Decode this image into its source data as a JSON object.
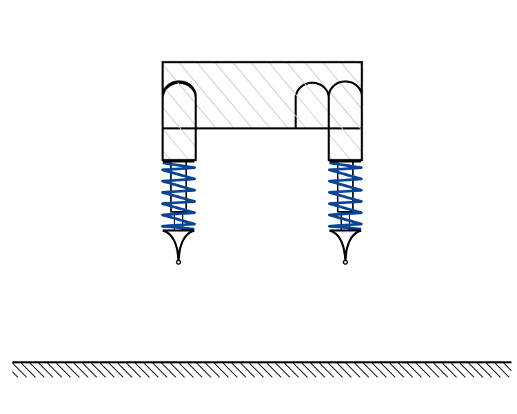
{
  "diagram": {
    "subject": "rigid-body-on-two-spring-legs-above-ground",
    "colors": {
      "outline": "#000000",
      "hatch": "#d0d0d0",
      "spring": "#0b4596",
      "background": "#ffffff"
    },
    "legs": [
      {
        "id": "left"
      },
      {
        "id": "right"
      }
    ],
    "spring_coils": 6
  }
}
